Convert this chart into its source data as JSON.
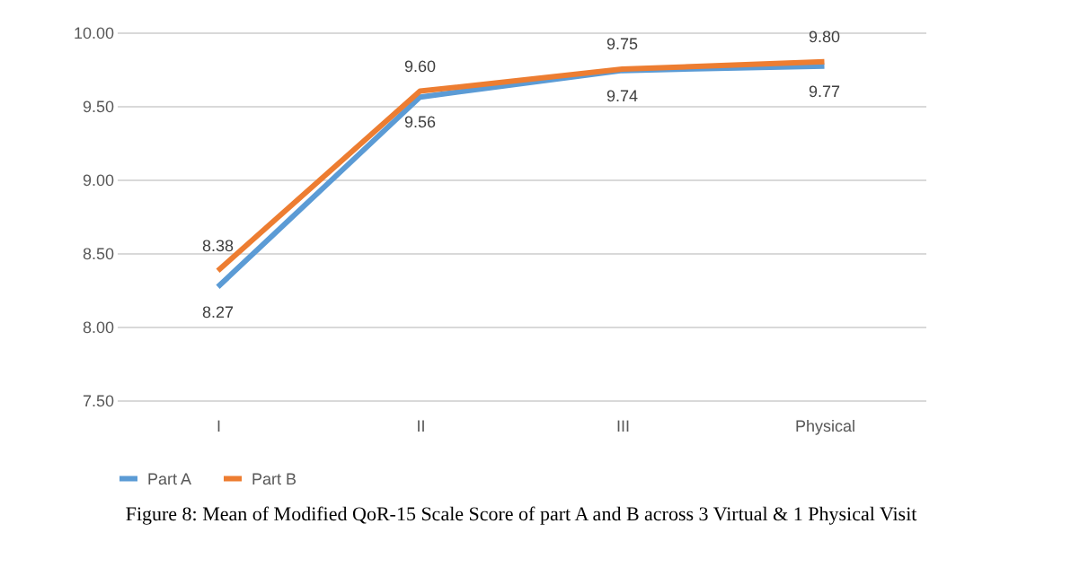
{
  "chart_data": {
    "type": "line",
    "categories": [
      "I",
      "II",
      "III",
      "Physical"
    ],
    "series": [
      {
        "name": "Part A",
        "color": "#5b9bd5",
        "values": [
          8.27,
          9.56,
          9.74,
          9.77
        ],
        "value_labels": [
          "8.27",
          "9.56",
          "9.74",
          "9.77"
        ]
      },
      {
        "name": "Part B",
        "color": "#ed7d31",
        "values": [
          8.38,
          9.6,
          9.75,
          9.8
        ],
        "value_labels": [
          "8.38",
          "9.60",
          "9.75",
          "9.80"
        ]
      }
    ],
    "ylim": [
      7.5,
      10.0
    ],
    "yticks": [
      {
        "value": 7.5,
        "label": "7.50"
      },
      {
        "value": 8.0,
        "label": "8.00"
      },
      {
        "value": 8.5,
        "label": "8.50"
      },
      {
        "value": 9.0,
        "label": "9.00"
      },
      {
        "value": 9.5,
        "label": "9.50"
      },
      {
        "value": 10.0,
        "label": "10.00"
      }
    ],
    "grid": "y",
    "legend": "bottom",
    "line_style": "solid",
    "marker": "none",
    "annotations": [
      "Figure 8: Mean of Modified QoR-15 Scale Score of part A and B across 3 Virtual & 1 Physical Visit"
    ]
  }
}
